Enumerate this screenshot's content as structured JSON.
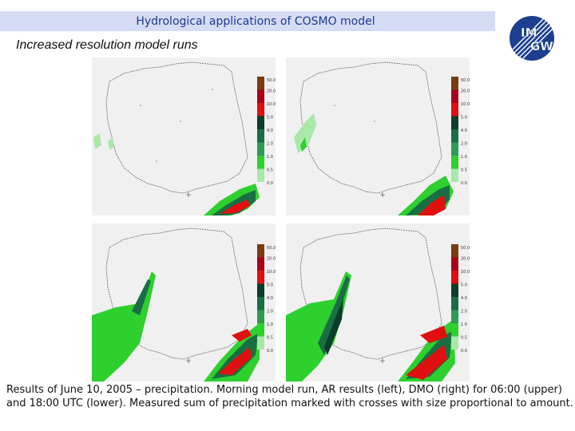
{
  "header": {
    "title": "Hydrological applications of COSMO model"
  },
  "slide": {
    "subtitle": "Increased resolution model runs"
  },
  "logo": {
    "text_top": "IM",
    "text_bottom": "GW"
  },
  "legend": {
    "labels": [
      "50.0",
      "20.0",
      "10.0",
      "5.0",
      "4.0",
      "2.0",
      "1.0",
      "0.5",
      "0.0"
    ],
    "colors": [
      "#7a3b12",
      "#a8001a",
      "#e01010",
      "#0a3d2a",
      "#1a6e44",
      "#2f9a55",
      "#2ed02e",
      "#a9e8a9"
    ]
  },
  "panels": [
    {
      "name": "upper-left",
      "label": "AR 06:00 UTC"
    },
    {
      "name": "upper-right",
      "label": "DMO 06:00 UTC"
    },
    {
      "name": "lower-left",
      "label": "AR 18:00 UTC"
    },
    {
      "name": "lower-right",
      "label": "DMO 18:00 UTC"
    }
  ],
  "caption": "Results of June 10, 2005 – precipitation. Morning model run, AR results (left), DMO (right)  for 06:00 (upper) and 18:00 UTC (lower). Measured sum of precipitation marked with crosses with size proportional to amount."
}
